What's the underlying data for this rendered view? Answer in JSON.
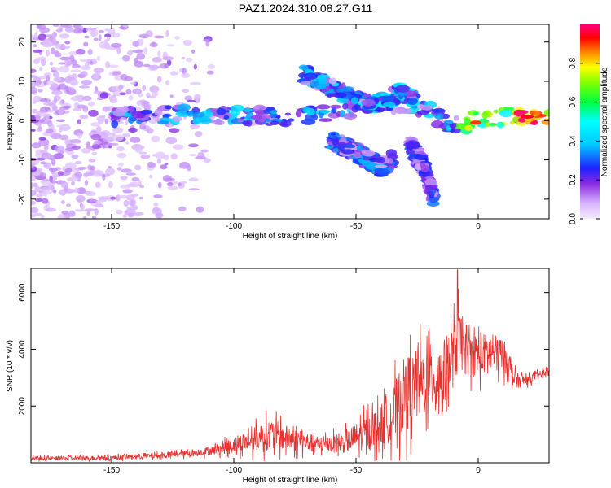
{
  "title": "PAZ1.2024.310.08.27.G11",
  "chart_data": [
    {
      "type": "heatmap",
      "xlabel": "Height of straight line (km)",
      "ylabel": "Frequency (Hz)",
      "xlim": [
        -183,
        29
      ],
      "ylim": [
        -25,
        24.5
      ],
      "xticks": [
        "-150",
        "-100",
        "-50",
        "0"
      ],
      "xtick_values": [
        -150,
        -100,
        -50,
        0
      ],
      "yticks": [
        "-20",
        "-10",
        "0",
        "10",
        "20"
      ],
      "ytick_values": [
        -20,
        -10,
        0,
        10,
        20
      ],
      "colorbar": {
        "label": "Normalized spectral amplitude",
        "range": [
          0,
          1
        ],
        "ticks": [
          "0.0",
          "0.2",
          "0.4",
          "0.6",
          "0.8"
        ],
        "tick_values": [
          0,
          0.2,
          0.4,
          0.6,
          0.8
        ],
        "colormap": "purple-blue-cyan-green-yellow-red-magenta"
      },
      "ridges": [
        {
          "x": [
            -150,
            -130,
            -110,
            -95,
            -80,
            -70,
            -60,
            -50,
            -40,
            -30,
            -22,
            -15,
            -8,
            -2,
            5,
            12,
            20,
            29
          ],
          "y": [
            1,
            1.5,
            1.5,
            1.2,
            1,
            1,
            2.5,
            3,
            3,
            3.5,
            3.5,
            0,
            -1.5,
            0,
            0,
            1.5,
            1,
            0
          ],
          "amp": 0.35
        },
        {
          "x": [
            -72,
            -62,
            -52,
            -42,
            -32,
            -25
          ],
          "y": [
            12,
            9,
            6,
            4,
            7,
            5
          ],
          "amp": 0.4
        },
        {
          "x": [
            -60,
            -50,
            -40,
            -35
          ],
          "y": [
            -5,
            -8,
            -12,
            -10
          ],
          "amp": 0.3
        },
        {
          "x": [
            -28,
            -22,
            -18
          ],
          "y": [
            -6,
            -12,
            -20
          ],
          "amp": 0.25
        }
      ],
      "peak_amplitude": {
        "x": 20,
        "y": 1,
        "value": 0.95
      }
    },
    {
      "type": "line",
      "xlabel": "Height of straight line (km)",
      "ylabel": "SNR (10 * v/v)",
      "xlim": [
        -183,
        29
      ],
      "ylim": [
        0,
        6850
      ],
      "xticks": [
        "-150",
        "-100",
        "-50",
        "0"
      ],
      "xtick_values": [
        -150,
        -100,
        -50,
        0
      ],
      "yticks": [
        "2000",
        "4000",
        "6000"
      ],
      "ytick_values": [
        2000,
        4000,
        6000
      ],
      "color": "#e8302e",
      "envelope": {
        "x": [
          -183,
          -150,
          -130,
          -115,
          -105,
          -95,
          -85,
          -75,
          -65,
          -55,
          -45,
          -40,
          -35,
          -30,
          -25,
          -20,
          -15,
          -10,
          -8,
          -5,
          0,
          5,
          10,
          12,
          15,
          20,
          29
        ],
        "mean": [
          150,
          180,
          250,
          350,
          500,
          750,
          1000,
          800,
          650,
          700,
          1100,
          1300,
          1700,
          2400,
          2700,
          3000,
          3000,
          3800,
          4300,
          3800,
          3800,
          3900,
          3800,
          3600,
          2900,
          2900,
          3250
        ],
        "spread": [
          80,
          100,
          120,
          150,
          250,
          450,
          700,
          500,
          350,
          450,
          800,
          900,
          1200,
          1700,
          1600,
          1500,
          1500,
          1400,
          1400,
          900,
          1000,
          800,
          800,
          600,
          400,
          200,
          150
        ]
      },
      "peak": {
        "x": -8.5,
        "y": 6800
      }
    }
  ]
}
